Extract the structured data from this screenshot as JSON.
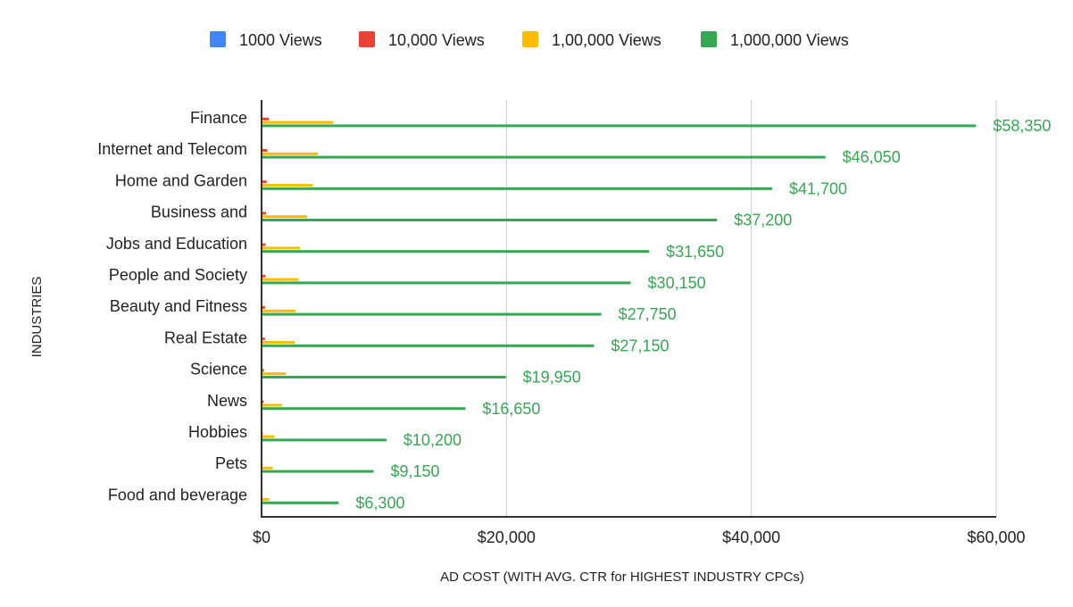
{
  "chart_data": {
    "type": "bar",
    "orientation": "horizontal",
    "legend_position": "top",
    "grid": true,
    "xlabel": "AD COST (WITH AVG. CTR for HIGHEST INDUSTRY CPCs)",
    "ylabel": "INDUSTRIES",
    "xlim": [
      0,
      60000
    ],
    "xticks": [
      {
        "value": 0,
        "label": "$0"
      },
      {
        "value": 20000,
        "label": "$20,000"
      },
      {
        "value": 40000,
        "label": "$40,000"
      },
      {
        "value": 60000,
        "label": "$60,000"
      }
    ],
    "categories": [
      "Finance",
      "Internet and Telecom",
      "Home and Garden",
      "Business and",
      "Jobs and Education",
      "People and Society",
      "Beauty and Fitness",
      "Real Estate",
      "Science",
      "News",
      "Hobbies",
      "Pets",
      "Food and beverage"
    ],
    "series": [
      {
        "name": "1000 Views",
        "color": "#4285f4",
        "values": [
          58.35,
          46.05,
          41.7,
          37.2,
          31.65,
          30.15,
          27.75,
          27.15,
          19.95,
          16.65,
          10.2,
          9.15,
          6.3
        ]
      },
      {
        "name": "10,000 Views",
        "color": "#ea4335",
        "values": [
          583.5,
          460.5,
          417,
          372,
          316.5,
          301.5,
          277.5,
          271.5,
          199.5,
          166.5,
          102,
          91.5,
          63
        ]
      },
      {
        "name": "1,00,000 Views",
        "color": "#fbbc04",
        "values": [
          5835,
          4605,
          4170,
          3720,
          3165,
          3015,
          2775,
          2715,
          1995,
          1665,
          1020,
          915,
          630
        ]
      },
      {
        "name": "1,000,000 Views",
        "color": "#34a853",
        "values": [
          58350,
          46050,
          41700,
          37200,
          31650,
          30150,
          27750,
          27150,
          19950,
          16650,
          10200,
          9150,
          6300
        ],
        "data_labels": [
          "$58,350",
          "$46,050",
          "$41,700",
          "$37,200",
          "$31,650",
          "$30,150",
          "$27,750",
          "$27,150",
          "$19,950",
          "$16,650",
          "$10,200",
          "$9,150",
          "$6,300"
        ]
      }
    ]
  }
}
